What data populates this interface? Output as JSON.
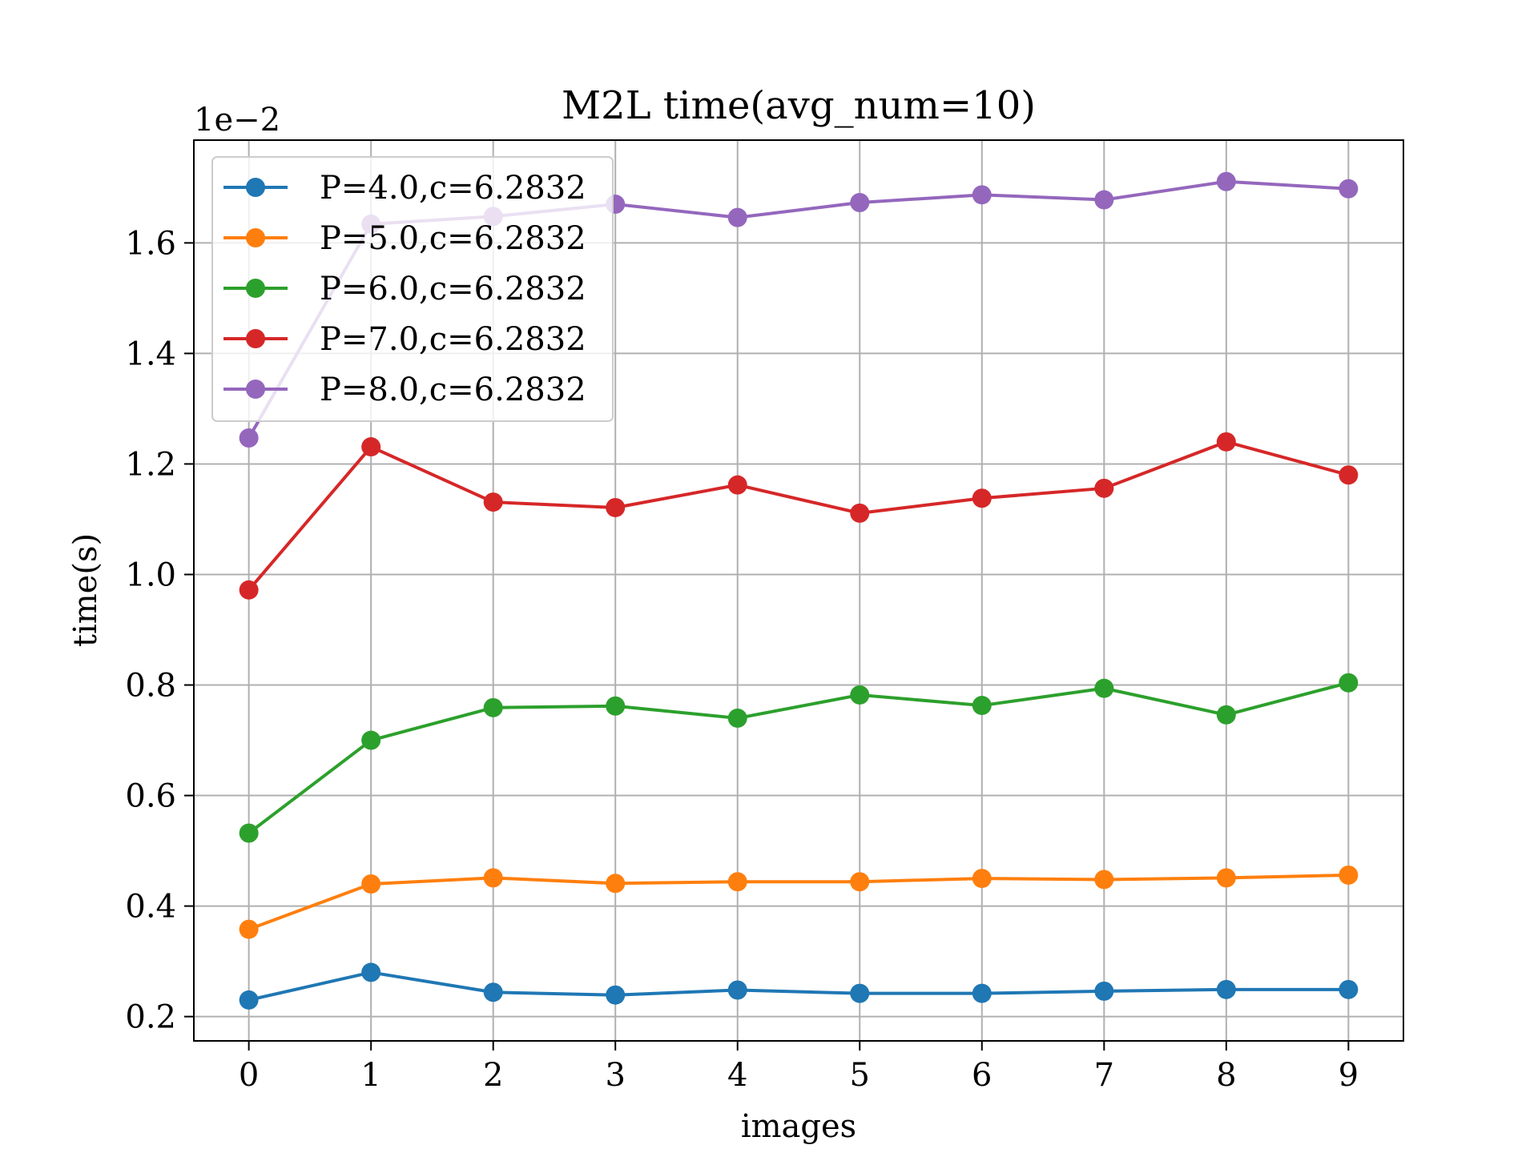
{
  "chart_data": {
    "type": "line",
    "title": "M2L time(avg_num=10)",
    "xlabel": "images",
    "ylabel": "time(s)",
    "y_offset_label": "1e−2",
    "x": [
      0,
      1,
      2,
      3,
      4,
      5,
      6,
      7,
      8,
      9
    ],
    "x_ticks": [
      "0",
      "1",
      "2",
      "3",
      "4",
      "5",
      "6",
      "7",
      "8",
      "9"
    ],
    "y_ticks": [
      "0.2",
      "0.4",
      "0.6",
      "0.8",
      "1.0",
      "1.2",
      "1.4",
      "1.6"
    ],
    "xlim": [
      -0.45,
      9.45
    ],
    "ylim": [
      0.156,
      1.786
    ],
    "grid": true,
    "legend_position": "top-left",
    "series": [
      {
        "name": "P=4.0,c=6.2832",
        "color": "#1f77b4",
        "values": [
          0.23,
          0.28,
          0.244,
          0.239,
          0.248,
          0.242,
          0.242,
          0.246,
          0.249,
          0.249
        ]
      },
      {
        "name": "P=5.0,c=6.2832",
        "color": "#ff7f0e",
        "values": [
          0.358,
          0.44,
          0.451,
          0.441,
          0.444,
          0.444,
          0.45,
          0.448,
          0.451,
          0.456
        ]
      },
      {
        "name": "P=6.0,c=6.2832",
        "color": "#2ca02c",
        "values": [
          0.532,
          0.7,
          0.759,
          0.762,
          0.74,
          0.782,
          0.763,
          0.794,
          0.746,
          0.804
        ]
      },
      {
        "name": "P=7.0,c=6.2832",
        "color": "#d62728",
        "values": [
          0.972,
          1.231,
          1.131,
          1.121,
          1.162,
          1.111,
          1.138,
          1.156,
          1.24,
          1.18
        ]
      },
      {
        "name": "P=8.0,c=6.2832",
        "color": "#9467bd",
        "values": [
          1.247,
          1.634,
          1.648,
          1.67,
          1.646,
          1.673,
          1.687,
          1.678,
          1.711,
          1.698
        ]
      }
    ]
  }
}
